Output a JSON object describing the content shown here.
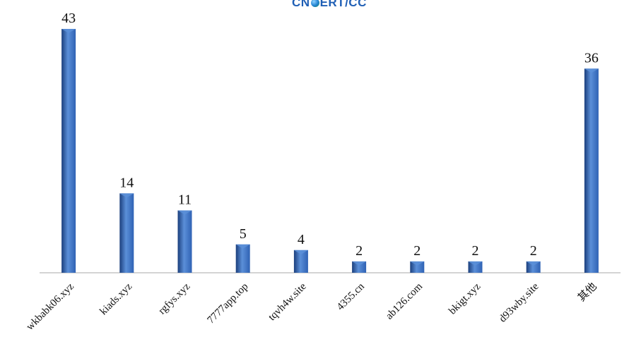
{
  "logo": {
    "text_left": "CN",
    "text_right": "ERT/CC"
  },
  "chart_data": {
    "type": "bar",
    "categories": [
      "wkbabk06.xyz",
      "kiads.xyz",
      "rgfys.xyz",
      "7777app.top",
      "tqvh4w.site",
      "4355.cn",
      "ab126.com",
      "bkigt.xyz",
      "d93wby.site",
      "其他"
    ],
    "values": [
      43,
      14,
      11,
      5,
      4,
      2,
      2,
      2,
      2,
      36
    ],
    "title": "",
    "xlabel": "",
    "ylabel": "",
    "ylim": [
      0,
      43
    ],
    "grid": false,
    "legend": "none",
    "bar_color": "#2f62b4",
    "bar_color_dark": "#1b3f7d",
    "bar_color_light": "#5b8fd8",
    "axis_color": "#a8a8a8"
  }
}
